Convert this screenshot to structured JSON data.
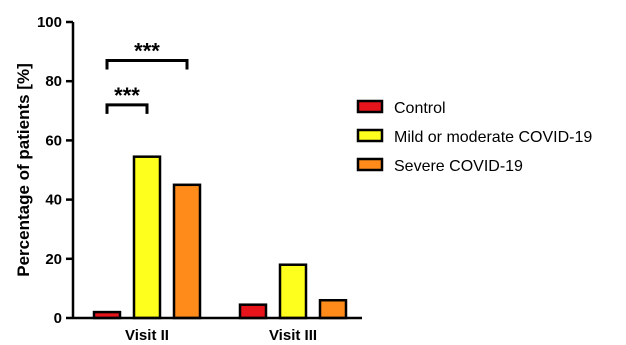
{
  "chart_data": {
    "type": "bar",
    "ylabel": "Percentage of patients [%]",
    "ylim": [
      0,
      100
    ],
    "yticks": [
      0,
      20,
      40,
      60,
      80,
      100
    ],
    "categories": [
      "Visit II",
      "Visit III"
    ],
    "series": [
      {
        "name": "Control",
        "color": "#e8141c",
        "values": [
          2,
          4.5
        ]
      },
      {
        "name": "Mild or moderate COVID-19",
        "color": "#ffff1e",
        "values": [
          54.5,
          18
        ]
      },
      {
        "name": "Severe COVID-19",
        "color": "#ff8c1a",
        "values": [
          45,
          6
        ]
      }
    ],
    "significance": [
      {
        "category": "Visit II",
        "from_series": 0,
        "to_series": 1,
        "y": 72,
        "label": "***"
      },
      {
        "category": "Visit II",
        "from_series": 0,
        "to_series": 2,
        "y": 87,
        "label": "***"
      }
    ],
    "legend": "right",
    "grid": false
  }
}
